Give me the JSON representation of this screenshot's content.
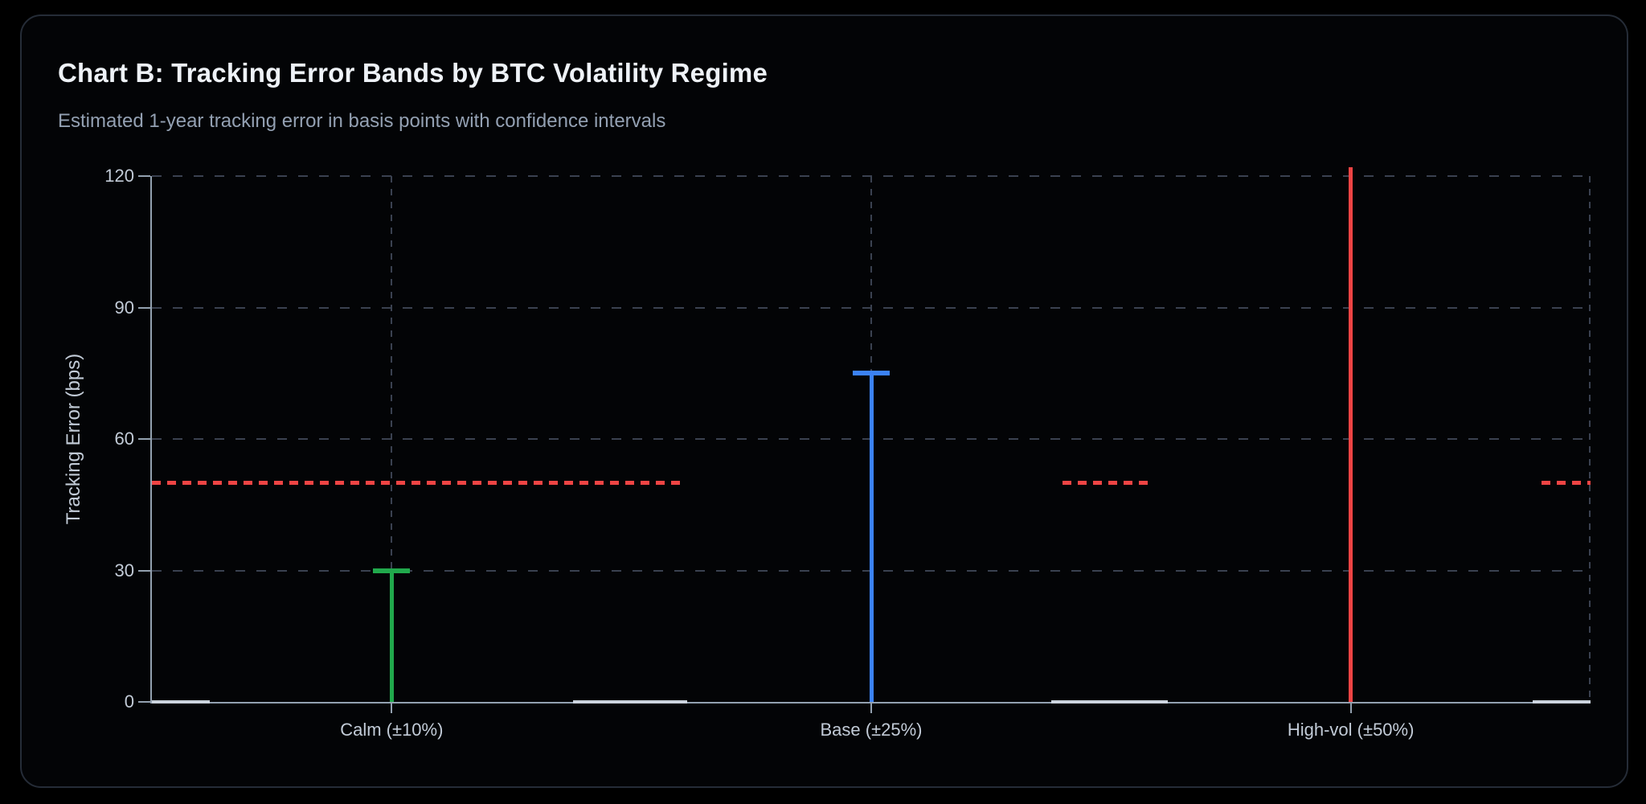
{
  "chart_data": {
    "type": "error-bar",
    "title": "Chart B: Tracking Error Bands by BTC Volatility Regime",
    "subtitle": "Estimated 1-year tracking error in basis points with confidence intervals",
    "ylabel": "Tracking Error (bps)",
    "xlabel": "",
    "ylim": [
      0,
      120
    ],
    "yticks": [
      0,
      30,
      60,
      90,
      120
    ],
    "grid": true,
    "legend": false,
    "categories": [
      "Calm (±10%)",
      "Base (±25%)",
      "High-vol (±50%)"
    ],
    "series": [
      {
        "category": "Calm (±10%)",
        "low": 0,
        "high": 30,
        "cap": true,
        "clipped_at_top": false,
        "color": "#21a94c"
      },
      {
        "category": "Base (±25%)",
        "low": 0,
        "high": 75,
        "cap": true,
        "clipped_at_top": false,
        "color": "#3b82f6"
      },
      {
        "category": "High-vol (±50%)",
        "low": 0,
        "high": 122,
        "cap": false,
        "clipped_at_top": true,
        "color": "#ef4444"
      }
    ],
    "threshold_line": {
      "value": 50,
      "color": "#ef4444",
      "style": "dashed",
      "segments_frac": [
        [
          0,
          0.369
        ],
        [
          0.633,
          0.696
        ],
        [
          0.966,
          1.0
        ]
      ]
    },
    "zero_line_dash_segments_frac": [
      [
        0,
        0.04
      ],
      [
        0.293,
        0.372
      ],
      [
        0.625,
        0.706
      ],
      [
        0.96,
        1.0
      ]
    ],
    "colors": {
      "background": "#000000",
      "card_border": "#252c37",
      "grid": "#3a4150",
      "axis": "#93a1b0",
      "tick_label": "#c2cbd7",
      "title": "#eef2f7",
      "subtitle": "#93a0b2"
    }
  }
}
